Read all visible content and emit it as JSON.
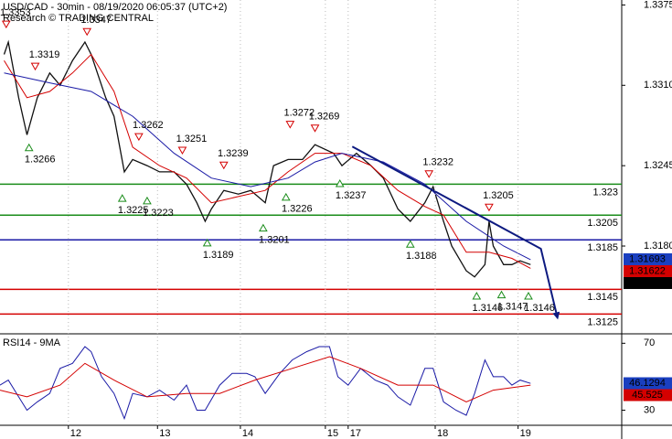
{
  "chart_data": [
    {
      "type": "line",
      "title": "USD/CAD - 30min - 08/19/2020 06:05:37 (UTC+2)",
      "subtitle": "Research © TRADING CENTRAL",
      "xlim": [
        0,
        300
      ],
      "ylim": [
        1.3109,
        1.3379
      ],
      "yticks": [
        {
          "value": 1.3375,
          "label": "1.3375"
        },
        {
          "value": 1.331,
          "label": "1.3310"
        },
        {
          "value": 1.3245,
          "label": "1.3245"
        },
        {
          "value": 1.318,
          "label": "1.3180"
        }
      ],
      "series": [
        {
          "color": "#111111",
          "x": [
            2,
            4,
            9,
            13,
            18,
            24,
            29,
            35,
            41,
            44,
            51,
            55,
            60,
            64,
            71,
            77,
            84,
            90,
            95,
            99,
            102,
            108,
            115,
            121,
            128,
            132,
            139,
            146,
            152,
            161,
            165,
            172,
            179,
            185,
            192,
            198,
            205,
            209,
            214,
            218,
            225,
            229,
            234,
            236,
            238,
            243,
            247,
            251,
            256
          ],
          "values": [
            1.3335,
            1.3345,
            1.33,
            1.327,
            1.33,
            1.332,
            1.331,
            1.333,
            1.3345,
            1.3335,
            1.33,
            1.3285,
            1.324,
            1.325,
            1.3245,
            1.324,
            1.324,
            1.323,
            1.3215,
            1.32,
            1.321,
            1.3225,
            1.3222,
            1.3225,
            1.3215,
            1.3245,
            1.325,
            1.325,
            1.3262,
            1.3255,
            1.3245,
            1.3255,
            1.3245,
            1.3235,
            1.321,
            1.32,
            1.3215,
            1.3228,
            1.32,
            1.318,
            1.316,
            1.3155,
            1.3165,
            1.32,
            1.318,
            1.3165,
            1.3165,
            1.3168,
            1.3165
          ]
        },
        {
          "color": "#d40000",
          "x": [
            2,
            13,
            24,
            35,
            44,
            55,
            64,
            77,
            90,
            102,
            115,
            128,
            139,
            152,
            165,
            179,
            192,
            205,
            214,
            225,
            236,
            247,
            256
          ],
          "values": [
            1.333,
            1.33,
            1.3305,
            1.332,
            1.3335,
            1.3305,
            1.326,
            1.3245,
            1.3235,
            1.3215,
            1.322,
            1.3225,
            1.324,
            1.3255,
            1.3255,
            1.3245,
            1.3225,
            1.3212,
            1.3205,
            1.3175,
            1.3175,
            1.317,
            1.3162
          ]
        },
        {
          "color": "#1a1aa6",
          "x": [
            2,
            24,
            44,
            64,
            84,
            102,
            121,
            139,
            152,
            165,
            185,
            205,
            225,
            243,
            256
          ],
          "values": [
            1.332,
            1.3312,
            1.3305,
            1.3285,
            1.3255,
            1.3235,
            1.3228,
            1.3235,
            1.3248,
            1.3255,
            1.3248,
            1.323,
            1.32,
            1.318,
            1.3169
          ]
        }
      ],
      "levels": [
        {
          "value": 1.323,
          "color": "#1a8c1a"
        },
        {
          "value": 1.3205,
          "color": "#1a8c1a"
        },
        {
          "value": 1.3185,
          "color": "#1a1aa6"
        },
        {
          "value": 1.3145,
          "color": "#d40000"
        },
        {
          "value": 1.3125,
          "color": "#d40000"
        }
      ],
      "annotations": [
        {
          "x": 3,
          "value": 1.3353,
          "kind": "peak"
        },
        {
          "x": 42,
          "value": 1.3347,
          "kind": "peak"
        },
        {
          "x": 17,
          "value": 1.3319,
          "kind": "peak"
        },
        {
          "x": 14,
          "value": 1.3266,
          "kind": "trough"
        },
        {
          "x": 67,
          "value": 1.3262,
          "kind": "peak"
        },
        {
          "x": 88,
          "value": 1.3251,
          "kind": "peak"
        },
        {
          "x": 108,
          "value": 1.3239,
          "kind": "peak"
        },
        {
          "x": 140,
          "value": 1.3272,
          "kind": "peak"
        },
        {
          "x": 152,
          "value": 1.3269,
          "kind": "peak"
        },
        {
          "x": 59,
          "value": 1.3225,
          "kind": "trough"
        },
        {
          "x": 71,
          "value": 1.3223,
          "kind": "trough"
        },
        {
          "x": 100,
          "value": 1.3189,
          "kind": "trough"
        },
        {
          "x": 127,
          "value": 1.3201,
          "kind": "trough"
        },
        {
          "x": 138,
          "value": 1.3226,
          "kind": "trough"
        },
        {
          "x": 164,
          "value": 1.3237,
          "kind": "trough"
        },
        {
          "x": 207,
          "value": 1.3232,
          "kind": "peak"
        },
        {
          "x": 198,
          "value": 1.3188,
          "kind": "trough"
        },
        {
          "x": 236,
          "value": 1.3205,
          "kind": "peak"
        },
        {
          "x": 230,
          "value": 1.3146,
          "kind": "trough"
        },
        {
          "x": 242,
          "value": 1.3147,
          "kind": "trough"
        },
        {
          "x": 255,
          "value": 1.3146,
          "kind": "trough"
        }
      ],
      "trendline": {
        "color": "#0d1a80",
        "x": [
          170,
          261,
          269
        ],
        "values": [
          1.32605,
          1.31778,
          1.3122
        ]
      },
      "price_tags": [
        {
          "value": 1.31693,
          "color": "#1a3fc0"
        },
        {
          "value": 1.31622,
          "color": "#d40000"
        },
        {
          "value": 1.31606,
          "color": "#000000"
        }
      ]
    },
    {
      "type": "line",
      "title": "RSI14 - 9MA",
      "xlim": [
        0,
        300
      ],
      "ylim": [
        21,
        74
      ],
      "yticks": [
        70,
        30
      ],
      "xticks": [
        {
          "value": 33,
          "label": "12"
        },
        {
          "value": 76,
          "label": "13"
        },
        {
          "value": 116,
          "label": "14"
        },
        {
          "value": 157,
          "label": "15"
        },
        {
          "value": 168,
          "label": "17"
        },
        {
          "value": 210,
          "label": "18"
        },
        {
          "value": 250,
          "label": "19"
        }
      ],
      "series": [
        {
          "color": "#1a1aa6",
          "x": [
            0,
            4,
            9,
            13,
            18,
            24,
            29,
            35,
            41,
            44,
            49,
            55,
            60,
            64,
            71,
            77,
            84,
            90,
            95,
            99,
            106,
            112,
            119,
            123,
            128,
            135,
            141,
            148,
            154,
            159,
            163,
            168,
            174,
            181,
            187,
            192,
            198,
            205,
            209,
            214,
            220,
            225,
            229,
            234,
            238,
            243,
            247,
            251,
            256
          ],
          "values": [
            45,
            48,
            38,
            30,
            35,
            40,
            55,
            58,
            68,
            65,
            50,
            40,
            25,
            40,
            38,
            42,
            36,
            45,
            30,
            30,
            45,
            52,
            52,
            50,
            40,
            52,
            60,
            65,
            68,
            68,
            50,
            45,
            55,
            48,
            45,
            38,
            33,
            55,
            55,
            35,
            30,
            27,
            40,
            60,
            50,
            50,
            45,
            48,
            46
          ]
        },
        {
          "color": "#d40000",
          "x": [
            0,
            13,
            29,
            41,
            55,
            71,
            90,
            106,
            123,
            141,
            159,
            174,
            192,
            209,
            225,
            238,
            256
          ],
          "values": [
            42,
            38,
            45,
            58,
            48,
            38,
            40,
            40,
            48,
            55,
            62,
            55,
            45,
            45,
            35,
            42,
            45
          ]
        }
      ],
      "price_tags": [
        {
          "value": 46.1294,
          "color": "#1a3fc0"
        },
        {
          "value": 45.525,
          "color": "#d40000"
        }
      ]
    }
  ]
}
